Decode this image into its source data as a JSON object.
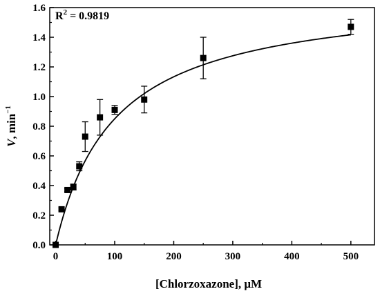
{
  "chart_data": {
    "type": "scatter",
    "xlabel": "[Chlorzoxazone], μM",
    "ylabel": {
      "var": "V",
      "unit": ", min",
      "exponent": "−1"
    },
    "annotation": {
      "prefix": "R",
      "sup": "2",
      "value": " = 0.9819"
    },
    "xlim": [
      -10,
      540
    ],
    "ylim": [
      0,
      1.6
    ],
    "xticks": [
      0,
      100,
      200,
      300,
      400,
      500
    ],
    "yticks": [
      0.0,
      0.2,
      0.4,
      0.6,
      0.8,
      1.0,
      1.2,
      1.4,
      1.6
    ],
    "ytick_labels": [
      "0.0",
      "0.2",
      "0.4",
      "0.6",
      "0.8",
      "1.0",
      "1.2",
      "1.4",
      "1.6"
    ],
    "series": [
      {
        "marker": "square",
        "points": [
          {
            "x": 0,
            "y": 0.0,
            "err": 0.0
          },
          {
            "x": 10,
            "y": 0.24,
            "err": 0.01
          },
          {
            "x": 20,
            "y": 0.37,
            "err": 0.01
          },
          {
            "x": 30,
            "y": 0.39,
            "err": 0.02
          },
          {
            "x": 40,
            "y": 0.53,
            "err": 0.03
          },
          {
            "x": 50,
            "y": 0.73,
            "err": 0.1
          },
          {
            "x": 75,
            "y": 0.86,
            "err": 0.12
          },
          {
            "x": 100,
            "y": 0.91,
            "err": 0.03
          },
          {
            "x": 150,
            "y": 0.98,
            "err": 0.09
          },
          {
            "x": 250,
            "y": 1.26,
            "err": 0.14
          },
          {
            "x": 500,
            "y": 1.47,
            "err": 0.05
          }
        ]
      }
    ],
    "fit": {
      "type": "michaelis-menten",
      "vmax": 1.7,
      "km": 100,
      "x_range": [
        0,
        500
      ]
    }
  }
}
